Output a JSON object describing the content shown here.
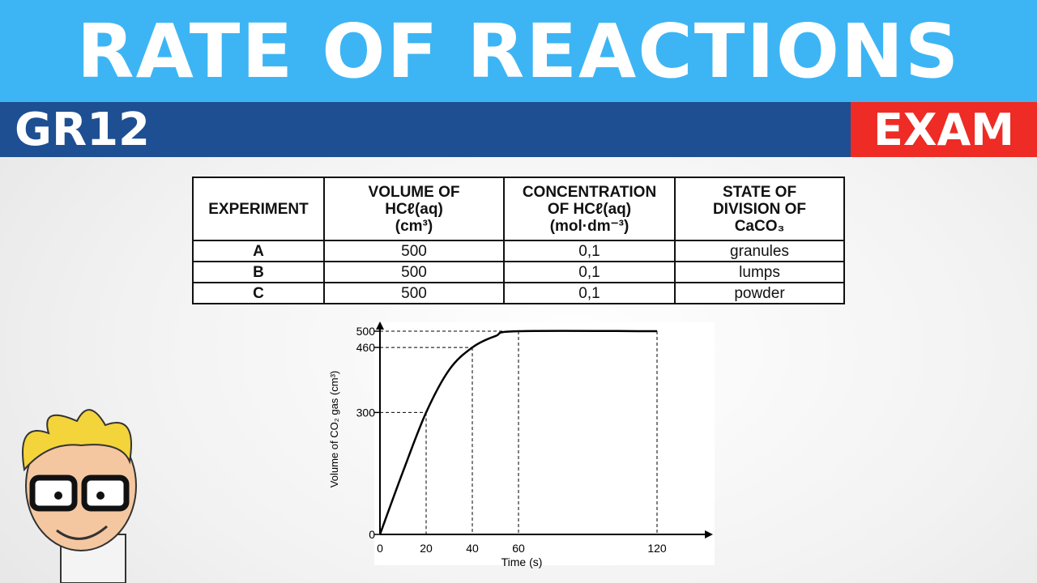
{
  "header": {
    "title": "RATE OF REACTIONS",
    "grade": "GR12",
    "badge": "EXAM"
  },
  "table": {
    "headers": [
      [
        "EXPERIMENT"
      ],
      [
        "VOLUME OF",
        "HCℓ(aq)",
        "(cm³)"
      ],
      [
        "CONCENTRATION",
        "OF HCℓ(aq)",
        "(mol·dm⁻³)"
      ],
      [
        "STATE OF",
        "DIVISION OF",
        "CaCO₃"
      ]
    ],
    "rows": [
      [
        "A",
        "500",
        "0,1",
        "granules"
      ],
      [
        "B",
        "500",
        "0,1",
        "lumps"
      ],
      [
        "C",
        "500",
        "0,1",
        "powder"
      ]
    ]
  },
  "chart_data": {
    "type": "line",
    "xlabel": "Time (s)",
    "ylabel": "Volume of CO₂ gas (cm³)",
    "xticks": [
      0,
      20,
      40,
      60,
      120
    ],
    "yticks": [
      0,
      300,
      460,
      500
    ],
    "xlim": [
      0,
      140
    ],
    "ylim": [
      0,
      520
    ],
    "series": [
      {
        "name": "CO2 volume",
        "x": [
          0,
          10,
          20,
          30,
          40,
          50,
          60,
          120
        ],
        "y": [
          0,
          155,
          300,
          405,
          460,
          488,
          500,
          500
        ]
      }
    ],
    "marked_points": [
      [
        20,
        300
      ],
      [
        40,
        460
      ],
      [
        60,
        500
      ],
      [
        120,
        500
      ]
    ]
  },
  "colors": {
    "top": "#3db5f4",
    "band": "#1d4f92",
    "exam": "#ee2b24"
  }
}
